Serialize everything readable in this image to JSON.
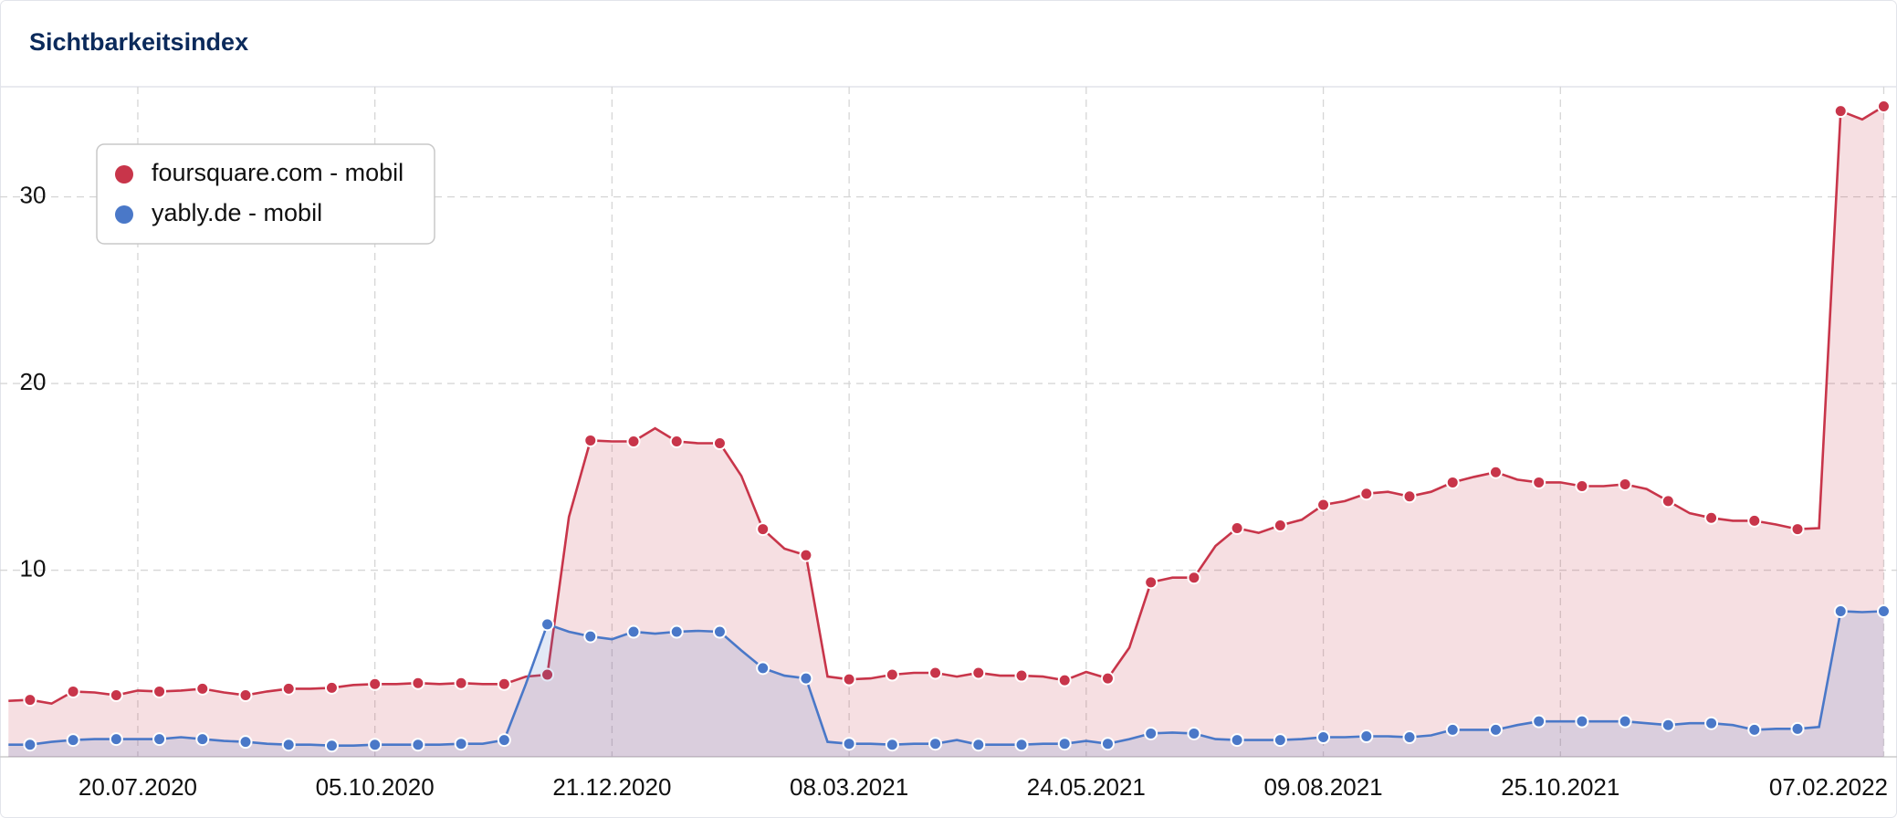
{
  "chart_data": {
    "type": "area",
    "title": "Sichtbarkeitsindex",
    "categories": [
      null,
      null,
      null,
      null,
      null,
      null,
      "20.07.2020",
      null,
      null,
      null,
      null,
      null,
      null,
      null,
      null,
      null,
      null,
      "05.10.2020",
      null,
      null,
      null,
      null,
      null,
      null,
      null,
      null,
      null,
      null,
      "21.12.2020",
      null,
      null,
      null,
      null,
      null,
      null,
      null,
      null,
      null,
      null,
      "08.03.2021",
      null,
      null,
      null,
      null,
      null,
      null,
      null,
      null,
      null,
      null,
      "24.05.2021",
      null,
      null,
      null,
      null,
      null,
      null,
      null,
      null,
      null,
      null,
      "09.08.2021",
      null,
      null,
      null,
      null,
      null,
      null,
      null,
      null,
      null,
      null,
      "25.10.2021",
      null,
      null,
      null,
      null,
      null,
      null,
      null,
      null,
      null,
      null,
      null,
      null,
      null,
      null,
      "07.02.2022"
    ],
    "series": [
      {
        "name": "foursquare.com - mobil",
        "color": "#c8354a",
        "values": [
          3.0,
          3.05,
          2.85,
          3.5,
          3.45,
          3.3,
          3.55,
          3.5,
          3.55,
          3.65,
          3.45,
          3.3,
          3.5,
          3.65,
          3.65,
          3.7,
          3.85,
          3.9,
          3.9,
          3.95,
          3.9,
          3.95,
          3.9,
          3.9,
          4.3,
          4.4,
          12.85,
          16.95,
          16.9,
          16.9,
          17.6,
          16.9,
          16.8,
          16.8,
          15.05,
          12.2,
          11.15,
          10.8,
          4.3,
          4.15,
          4.2,
          4.4,
          4.5,
          4.5,
          4.3,
          4.5,
          4.35,
          4.35,
          4.3,
          4.1,
          4.55,
          4.2,
          5.85,
          9.35,
          9.6,
          9.6,
          11.3,
          12.25,
          12.0,
          12.4,
          12.7,
          13.5,
          13.7,
          14.1,
          14.2,
          13.95,
          14.2,
          14.7,
          15.0,
          15.25,
          14.85,
          14.7,
          14.7,
          14.5,
          14.5,
          14.6,
          14.35,
          13.7,
          13.05,
          12.8,
          12.65,
          12.65,
          12.45,
          12.2,
          12.25,
          34.6,
          34.15,
          34.85
        ]
      },
      {
        "name": "yably.de - mobil",
        "color": "#4a78c8",
        "values": [
          0.65,
          0.65,
          0.8,
          0.9,
          0.95,
          0.95,
          0.95,
          0.95,
          1.05,
          0.95,
          0.85,
          0.8,
          0.7,
          0.65,
          0.65,
          0.6,
          0.6,
          0.65,
          0.65,
          0.65,
          0.65,
          0.7,
          0.7,
          0.9,
          3.9,
          7.1,
          6.7,
          6.45,
          6.3,
          6.7,
          6.6,
          6.7,
          6.75,
          6.7,
          5.7,
          4.75,
          4.35,
          4.2,
          0.8,
          0.7,
          0.7,
          0.65,
          0.7,
          0.7,
          0.9,
          0.65,
          0.65,
          0.65,
          0.7,
          0.7,
          0.85,
          0.7,
          0.95,
          1.25,
          1.3,
          1.25,
          0.95,
          0.9,
          0.9,
          0.9,
          0.95,
          1.05,
          1.05,
          1.1,
          1.1,
          1.05,
          1.15,
          1.45,
          1.45,
          1.45,
          1.7,
          1.9,
          1.9,
          1.9,
          1.9,
          1.9,
          1.8,
          1.7,
          1.8,
          1.8,
          1.7,
          1.45,
          1.5,
          1.5,
          1.6,
          7.8,
          7.75,
          7.8
        ]
      }
    ],
    "ylim": [
      0,
      35.9
    ],
    "yticks": [
      10,
      20,
      30
    ],
    "grid": true
  }
}
